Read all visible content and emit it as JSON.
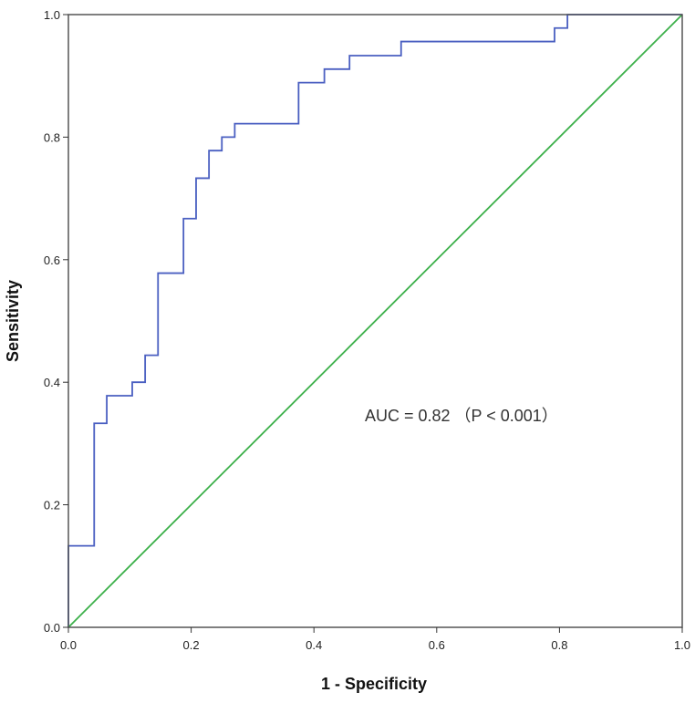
{
  "chart_data": {
    "type": "line",
    "title": "",
    "xlabel": "1 - Specificity",
    "ylabel": "Sensitivity",
    "xlim": [
      0,
      1
    ],
    "ylim": [
      0,
      1
    ],
    "x_ticks": [
      "0.0",
      "0.2",
      "0.4",
      "0.6",
      "0.8",
      "1.0"
    ],
    "y_ticks": [
      "0.0",
      "0.2",
      "0.4",
      "0.6",
      "0.8",
      "1.0"
    ],
    "grid": false,
    "annotation": "AUC = 0.82 （P < 0.001）",
    "series": [
      {
        "name": "ROC curve",
        "color": "#4a5fc1",
        "step": true,
        "points": [
          [
            0,
            0
          ],
          [
            0,
            0.133
          ],
          [
            0.042,
            0.133
          ],
          [
            0.042,
            0.333
          ],
          [
            0.0625,
            0.333
          ],
          [
            0.0625,
            0.378
          ],
          [
            0.104,
            0.378
          ],
          [
            0.104,
            0.4
          ],
          [
            0.125,
            0.4
          ],
          [
            0.125,
            0.444
          ],
          [
            0.146,
            0.444
          ],
          [
            0.146,
            0.578
          ],
          [
            0.1875,
            0.578
          ],
          [
            0.1875,
            0.667
          ],
          [
            0.208,
            0.667
          ],
          [
            0.208,
            0.733
          ],
          [
            0.229,
            0.733
          ],
          [
            0.229,
            0.778
          ],
          [
            0.25,
            0.778
          ],
          [
            0.25,
            0.8
          ],
          [
            0.271,
            0.8
          ],
          [
            0.271,
            0.822
          ],
          [
            0.375,
            0.822
          ],
          [
            0.375,
            0.889
          ],
          [
            0.417,
            0.889
          ],
          [
            0.417,
            0.911
          ],
          [
            0.458,
            0.911
          ],
          [
            0.458,
            0.933
          ],
          [
            0.542,
            0.933
          ],
          [
            0.542,
            0.956
          ],
          [
            0.792,
            0.956
          ],
          [
            0.792,
            0.978
          ],
          [
            0.813,
            0.978
          ],
          [
            0.813,
            1
          ],
          [
            1,
            1
          ]
        ]
      },
      {
        "name": "Reference line",
        "color": "#3cb04a",
        "points": [
          [
            0,
            0
          ],
          [
            1,
            1
          ]
        ]
      }
    ]
  }
}
